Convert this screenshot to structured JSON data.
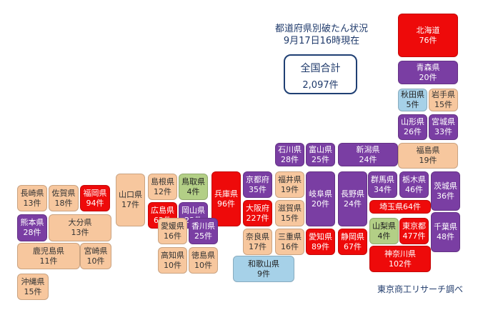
{
  "title_line1": "都道府県別破たん状況",
  "title_line2": "9月17日16時現在",
  "total_label": "全国合計",
  "total_value": "2,097件",
  "credit": "東京商工リサーチ調べ",
  "colors": {
    "beige": "#f7c79e",
    "purple": "#7a3ea3",
    "red": "#ee0a0a",
    "green": "#b3cf86",
    "blue": "#a6d1e8"
  },
  "prefectures": [
    {
      "id": "hokkaido",
      "name": "北海道",
      "count": "76件",
      "color": "red"
    },
    {
      "id": "aomori",
      "name": "青森県",
      "count": "20件",
      "color": "purple"
    },
    {
      "id": "akita",
      "name": "秋田県",
      "count": "5件",
      "color": "blue"
    },
    {
      "id": "iwate",
      "name": "岩手県",
      "count": "15件",
      "color": "beige"
    },
    {
      "id": "yamagata",
      "name": "山形県",
      "count": "26件",
      "color": "purple"
    },
    {
      "id": "miyagi",
      "name": "宮城県",
      "count": "33件",
      "color": "purple"
    },
    {
      "id": "fukushima",
      "name": "福島県",
      "count": "19件",
      "color": "beige"
    },
    {
      "id": "ishikawa",
      "name": "石川県",
      "count": "28件",
      "color": "purple"
    },
    {
      "id": "toyama",
      "name": "富山県",
      "count": "25件",
      "color": "purple"
    },
    {
      "id": "niigata",
      "name": "新潟県",
      "count": "24件",
      "color": "purple"
    },
    {
      "id": "gunma",
      "name": "群馬県",
      "count": "34件",
      "color": "purple"
    },
    {
      "id": "tochigi",
      "name": "栃木県",
      "count": "46件",
      "color": "purple"
    },
    {
      "id": "ibaraki",
      "name": "茨城県",
      "count": "36件",
      "color": "purple"
    },
    {
      "id": "nagasaki",
      "name": "長崎県",
      "count": "13件",
      "color": "beige"
    },
    {
      "id": "saga",
      "name": "佐賀県",
      "count": "18件",
      "color": "beige"
    },
    {
      "id": "fukuoka",
      "name": "福岡県",
      "count": "94件",
      "color": "red"
    },
    {
      "id": "yamaguchi",
      "name": "山口県",
      "count": "17件",
      "color": "beige"
    },
    {
      "id": "shimane",
      "name": "島根県",
      "count": "12件",
      "color": "beige"
    },
    {
      "id": "tottori",
      "name": "鳥取県",
      "count": "4件",
      "color": "green"
    },
    {
      "id": "hyogo",
      "name": "兵庫県",
      "count": "96件",
      "color": "red"
    },
    {
      "id": "kyoto",
      "name": "京都府",
      "count": "35件",
      "color": "purple"
    },
    {
      "id": "fukui",
      "name": "福井県",
      "count": "19件",
      "color": "beige"
    },
    {
      "id": "gifu",
      "name": "岐阜県",
      "count": "20件",
      "color": "purple"
    },
    {
      "id": "nagano",
      "name": "長野県",
      "count": "24件",
      "color": "purple"
    },
    {
      "id": "saitama",
      "name": "埼玉県",
      "count": "64件",
      "color": "red"
    },
    {
      "id": "chiba",
      "name": "千葉県",
      "count": "48件",
      "color": "purple"
    },
    {
      "id": "kumamoto",
      "name": "熊本県",
      "count": "28件",
      "color": "purple"
    },
    {
      "id": "oita",
      "name": "大分県",
      "count": "13件",
      "color": "beige"
    },
    {
      "id": "hiroshima",
      "name": "広島県",
      "count": "62件",
      "color": "red"
    },
    {
      "id": "okayama",
      "name": "岡山県",
      "count": "23件",
      "color": "purple"
    },
    {
      "id": "osaka",
      "name": "大阪府",
      "count": "227件",
      "color": "red"
    },
    {
      "id": "shiga",
      "name": "滋賀県",
      "count": "15件",
      "color": "beige"
    },
    {
      "id": "yamanashi",
      "name": "山梨県",
      "count": "4件",
      "color": "green"
    },
    {
      "id": "tokyo",
      "name": "東京都",
      "count": "477件",
      "color": "red"
    },
    {
      "id": "kagoshima",
      "name": "鹿児島県",
      "count": "11件",
      "color": "beige"
    },
    {
      "id": "miyazaki",
      "name": "宮崎県",
      "count": "10件",
      "color": "beige"
    },
    {
      "id": "ehime",
      "name": "愛媛県",
      "count": "16件",
      "color": "beige"
    },
    {
      "id": "kagawa",
      "name": "香川県",
      "count": "25件",
      "color": "purple"
    },
    {
      "id": "nara",
      "name": "奈良県",
      "count": "17件",
      "color": "beige"
    },
    {
      "id": "mie",
      "name": "三重県",
      "count": "16件",
      "color": "beige"
    },
    {
      "id": "aichi",
      "name": "愛知県",
      "count": "89件",
      "color": "red"
    },
    {
      "id": "shizuoka",
      "name": "静岡県",
      "count": "67件",
      "color": "red"
    },
    {
      "id": "kanagawa",
      "name": "神奈川県",
      "count": "102件",
      "color": "red"
    },
    {
      "id": "wakayama",
      "name": "和歌山県",
      "count": "9件",
      "color": "blue"
    },
    {
      "id": "kochi",
      "name": "高知県",
      "count": "10件",
      "color": "beige"
    },
    {
      "id": "tokushima",
      "name": "徳島県",
      "count": "10件",
      "color": "beige"
    },
    {
      "id": "okinawa",
      "name": "沖縄県",
      "count": "15件",
      "color": "beige"
    }
  ]
}
